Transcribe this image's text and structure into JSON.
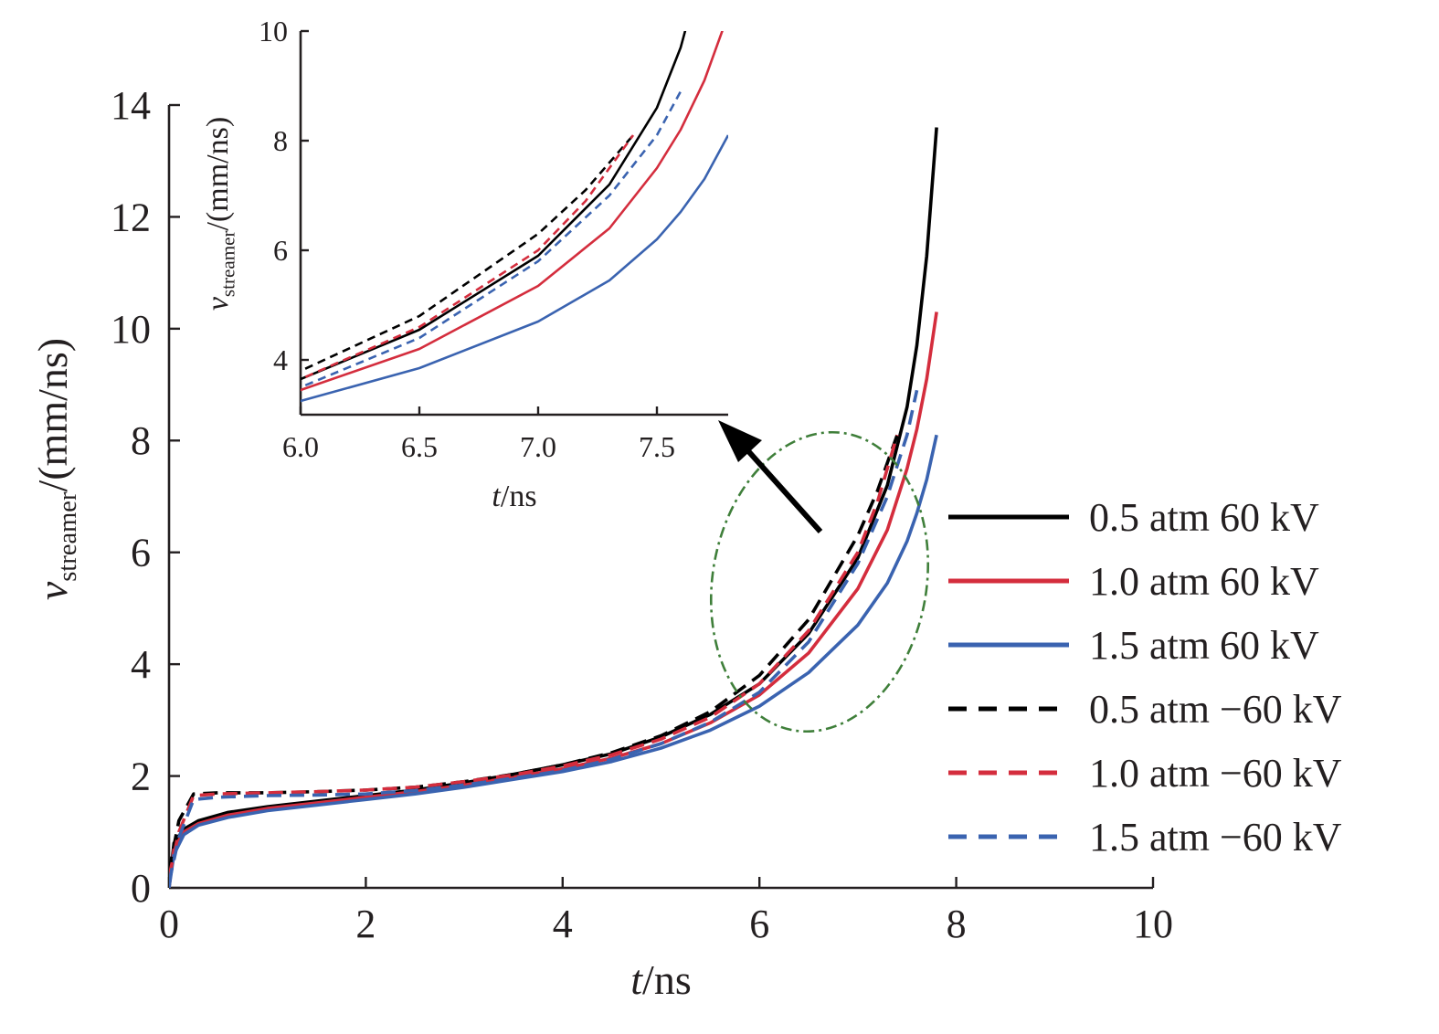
{
  "chart_data": [
    {
      "id": "main",
      "type": "line",
      "xlabel": {
        "italic": "t",
        "rest": "/ns"
      },
      "ylabel": {
        "italic": "v",
        "sub": "streamer",
        "rest": "/(mm/ns)"
      },
      "xlim": [
        0,
        10
      ],
      "ylim": [
        0,
        14
      ],
      "xticks": [
        0,
        2,
        4,
        6,
        8,
        10
      ],
      "yticks": [
        0,
        2,
        4,
        6,
        8,
        10,
        12,
        14
      ],
      "xtick_labels": [
        "0",
        "2",
        "4",
        "6",
        "8",
        "10"
      ],
      "ytick_labels": [
        "0",
        "2",
        "4",
        "6",
        "8",
        "10",
        "12",
        "14"
      ],
      "grid": false,
      "legend_position": "right",
      "series": [
        {
          "name": "0.5 atm 60 kV",
          "color": "#000000",
          "dash": "solid",
          "points": [
            [
              0,
              0
            ],
            [
              0.05,
              0.8
            ],
            [
              0.15,
              1.05
            ],
            [
              0.3,
              1.2
            ],
            [
              0.6,
              1.35
            ],
            [
              1,
              1.45
            ],
            [
              1.5,
              1.55
            ],
            [
              2,
              1.65
            ],
            [
              2.5,
              1.75
            ],
            [
              3,
              1.88
            ],
            [
              3.5,
              2.03
            ],
            [
              4,
              2.2
            ],
            [
              4.5,
              2.4
            ],
            [
              5,
              2.7
            ],
            [
              5.5,
              3.1
            ],
            [
              6,
              3.65
            ],
            [
              6.5,
              4.55
            ],
            [
              7,
              5.9
            ],
            [
              7.3,
              7.2
            ],
            [
              7.5,
              8.6
            ],
            [
              7.6,
              9.7
            ],
            [
              7.7,
              11.3
            ],
            [
              7.8,
              13.6
            ]
          ]
        },
        {
          "name": "1.0 atm 60 kV",
          "color": "#d42d3d",
          "dash": "solid",
          "points": [
            [
              0,
              0
            ],
            [
              0.05,
              0.7
            ],
            [
              0.15,
              1.0
            ],
            [
              0.3,
              1.15
            ],
            [
              0.6,
              1.3
            ],
            [
              1,
              1.42
            ],
            [
              1.5,
              1.52
            ],
            [
              2,
              1.62
            ],
            [
              2.5,
              1.72
            ],
            [
              3,
              1.84
            ],
            [
              3.5,
              1.98
            ],
            [
              4,
              2.13
            ],
            [
              4.5,
              2.32
            ],
            [
              5,
              2.58
            ],
            [
              5.5,
              2.95
            ],
            [
              6,
              3.45
            ],
            [
              6.5,
              4.2
            ],
            [
              7,
              5.35
            ],
            [
              7.3,
              6.4
            ],
            [
              7.5,
              7.5
            ],
            [
              7.6,
              8.2
            ],
            [
              7.7,
              9.1
            ],
            [
              7.8,
              10.3
            ]
          ]
        },
        {
          "name": "1.5 atm 60 kV",
          "color": "#3a63b0",
          "dash": "solid",
          "points": [
            [
              0,
              0
            ],
            [
              0.05,
              0.6
            ],
            [
              0.15,
              0.95
            ],
            [
              0.3,
              1.12
            ],
            [
              0.6,
              1.26
            ],
            [
              1,
              1.38
            ],
            [
              1.5,
              1.48
            ],
            [
              2,
              1.58
            ],
            [
              2.5,
              1.68
            ],
            [
              3,
              1.8
            ],
            [
              3.5,
              1.94
            ],
            [
              4,
              2.08
            ],
            [
              4.5,
              2.26
            ],
            [
              5,
              2.5
            ],
            [
              5.5,
              2.82
            ],
            [
              6,
              3.25
            ],
            [
              6.5,
              3.85
            ],
            [
              7,
              4.7
            ],
            [
              7.3,
              5.45
            ],
            [
              7.5,
              6.2
            ],
            [
              7.6,
              6.7
            ],
            [
              7.7,
              7.3
            ],
            [
              7.8,
              8.1
            ]
          ]
        },
        {
          "name": "0.5 atm −60 kV",
          "color": "#000000",
          "dash": "dashed",
          "points": [
            [
              0,
              0.3
            ],
            [
              0.1,
              1.2
            ],
            [
              0.25,
              1.68
            ],
            [
              0.5,
              1.7
            ],
            [
              1,
              1.7
            ],
            [
              1.5,
              1.72
            ],
            [
              2,
              1.75
            ],
            [
              2.5,
              1.8
            ],
            [
              3,
              1.9
            ],
            [
              3.5,
              2.03
            ],
            [
              4,
              2.2
            ],
            [
              4.5,
              2.42
            ],
            [
              5,
              2.72
            ],
            [
              5.5,
              3.15
            ],
            [
              6,
              3.8
            ],
            [
              6.5,
              4.8
            ],
            [
              7,
              6.3
            ],
            [
              7.2,
              7.1
            ],
            [
              7.4,
              8.1
            ]
          ]
        },
        {
          "name": "1.0 atm −60 kV",
          "color": "#d42d3d",
          "dash": "dashed",
          "points": [
            [
              0,
              0.2
            ],
            [
              0.1,
              1.0
            ],
            [
              0.25,
              1.65
            ],
            [
              0.5,
              1.68
            ],
            [
              1,
              1.7
            ],
            [
              1.5,
              1.72
            ],
            [
              2,
              1.75
            ],
            [
              2.5,
              1.8
            ],
            [
              3,
              1.9
            ],
            [
              3.5,
              2.02
            ],
            [
              4,
              2.18
            ],
            [
              4.5,
              2.38
            ],
            [
              5,
              2.66
            ],
            [
              5.5,
              3.05
            ],
            [
              6,
              3.65
            ],
            [
              6.5,
              4.6
            ],
            [
              7,
              6.0
            ],
            [
              7.2,
              6.9
            ],
            [
              7.4,
              8.1
            ]
          ]
        },
        {
          "name": "1.5 atm −60 kV",
          "color": "#3a63b0",
          "dash": "dashed",
          "points": [
            [
              0,
              0.1
            ],
            [
              0.1,
              0.9
            ],
            [
              0.25,
              1.58
            ],
            [
              0.5,
              1.62
            ],
            [
              1,
              1.65
            ],
            [
              1.5,
              1.66
            ],
            [
              2,
              1.68
            ],
            [
              2.5,
              1.74
            ],
            [
              3,
              1.84
            ],
            [
              3.5,
              1.96
            ],
            [
              4,
              2.1
            ],
            [
              4.5,
              2.3
            ],
            [
              5,
              2.58
            ],
            [
              5.5,
              2.96
            ],
            [
              6,
              3.5
            ],
            [
              6.5,
              4.4
            ],
            [
              7,
              5.8
            ],
            [
              7.3,
              7.0
            ],
            [
              7.5,
              8.1
            ],
            [
              7.6,
              8.9
            ]
          ]
        }
      ]
    },
    {
      "id": "inset",
      "type": "line",
      "xlabel": {
        "italic": "t",
        "rest": "/ns"
      },
      "ylabel": {
        "italic": "v",
        "sub": "streamer",
        "rest": "/(mm/ns)"
      },
      "xlim": [
        6.0,
        7.8
      ],
      "ylim": [
        3,
        10
      ],
      "xticks": [
        6.0,
        6.5,
        7.0,
        7.5
      ],
      "yticks": [
        4,
        6,
        8,
        10
      ],
      "xtick_labels": [
        "6.0",
        "6.5",
        "7.0",
        "7.5"
      ],
      "ytick_labels": [
        "4",
        "6",
        "8",
        "10"
      ],
      "grid": false,
      "series_ref": "main"
    }
  ],
  "annotations": {
    "zoom_ellipse_color": "#3f7f3a",
    "arrow_color": "#000000"
  }
}
